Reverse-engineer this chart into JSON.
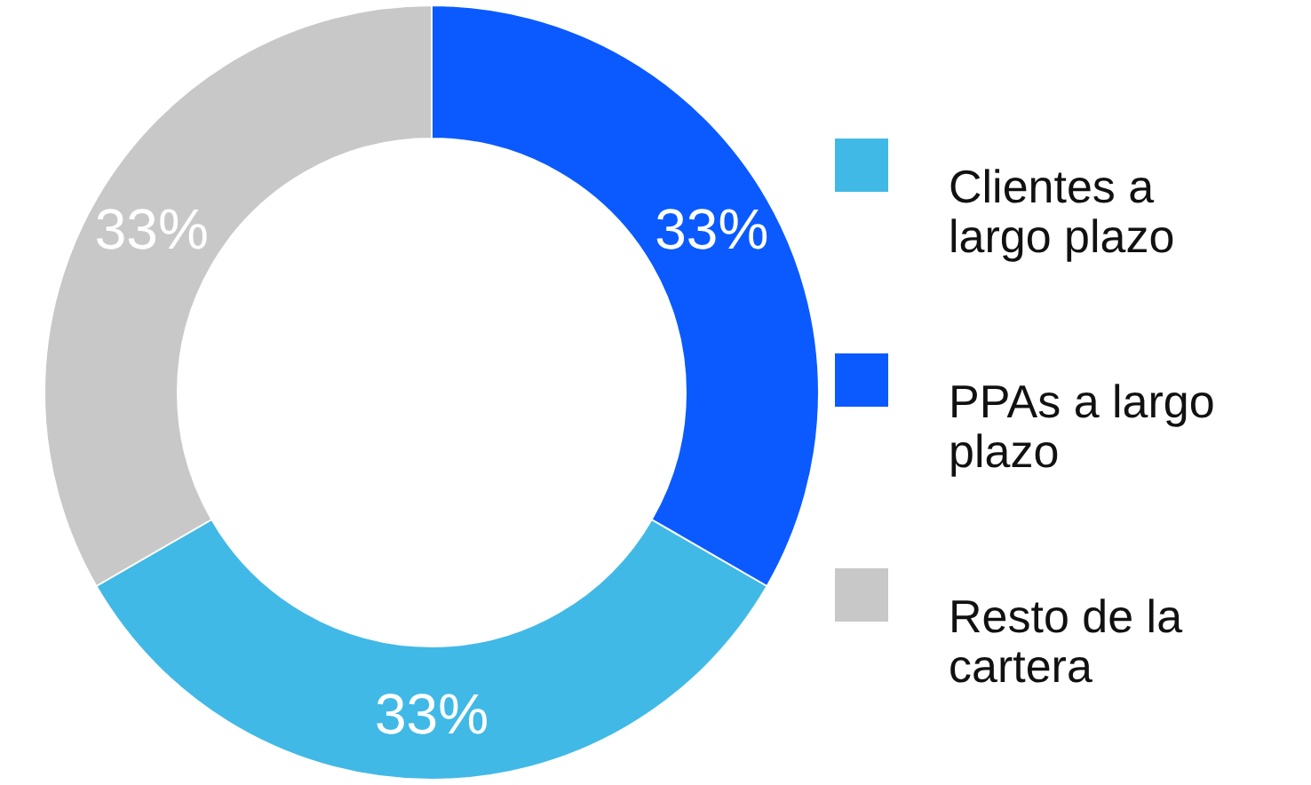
{
  "chart_data": {
    "type": "donut",
    "categories": [
      "Clientes a largo plazo",
      "PPAs a largo plazo",
      "Resto de la cartera"
    ],
    "values": [
      33,
      33,
      33
    ],
    "colors": [
      "#41b9e6",
      "#0a5aff",
      "#c8c8c8"
    ],
    "value_labels": [
      "33%",
      "33%",
      "33%"
    ],
    "legend": "right"
  }
}
